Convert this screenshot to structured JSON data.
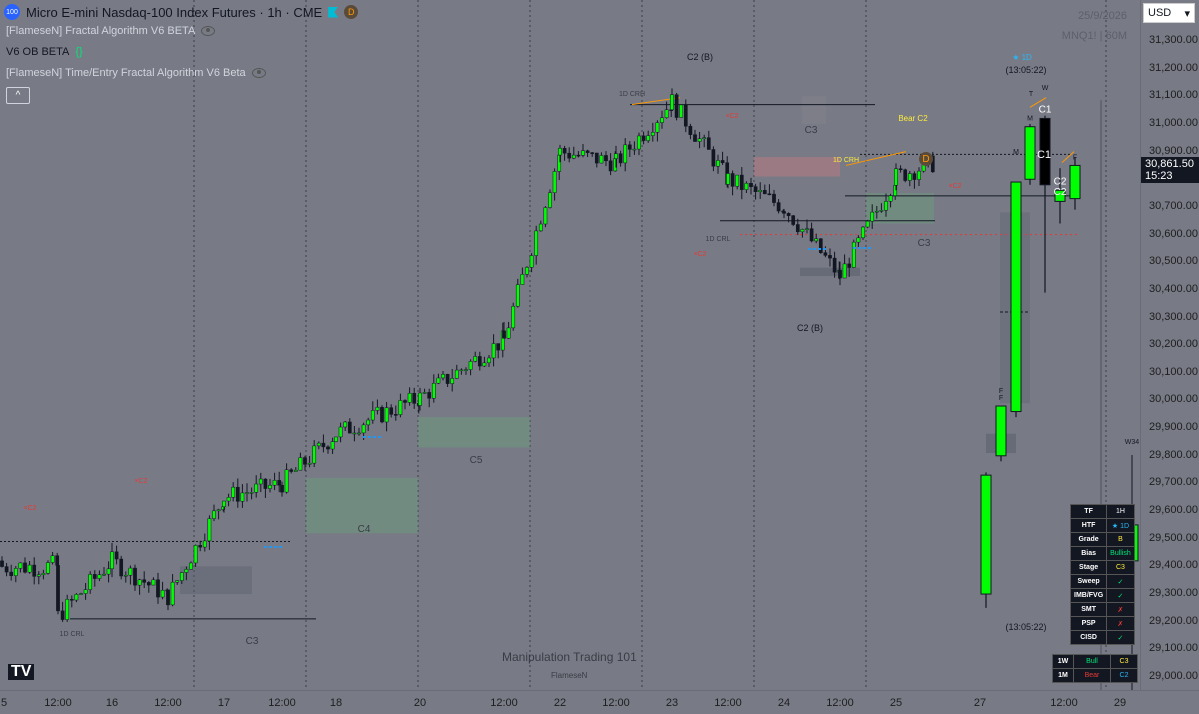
{
  "header": {
    "symbol_badge": "100",
    "title": "Micro E-mini Nasdaq-100 Index Futures · 1h · CME",
    "d_badge": "D",
    "indicators": [
      "[FlameseN] Fractal Algorithm V6 BETA",
      "V6 OB BETA",
      "[FlameseN] Time/Entry Fractal Algorithm V6 Beta"
    ],
    "braces": "{}",
    "collapse": "^"
  },
  "top_right": {
    "date": "25/9/2026",
    "ticker": "MNQ1! | 60M",
    "currency": "USD",
    "currency_caret": "▾"
  },
  "price_tag": {
    "price": "30,861.50",
    "countdown": "15:23"
  },
  "watermark": {
    "main": "Manipulation Trading 101",
    "sub": "FlameseN"
  },
  "tv_logo": "TV",
  "colors": {
    "background": "#787b86",
    "bull": "#00ff00",
    "bear": "#000000",
    "orange": "#ff9800",
    "yellow": "#ffeb3b",
    "red": "#e53935",
    "blue": "#2196f3"
  },
  "stats_table": {
    "rows": [
      {
        "k": "TF",
        "v": "1H",
        "c": "#ffffff"
      },
      {
        "k": "HTF",
        "v": "★ 1D",
        "c": "#29b6f6"
      },
      {
        "k": "Grade",
        "v": "B",
        "c": "#ffeb3b"
      },
      {
        "k": "Bias",
        "v": "Bullish",
        "c": "#00e676"
      },
      {
        "k": "Stage",
        "v": "C3",
        "c": "#ffeb3b"
      },
      {
        "k": "Sweep",
        "v": "✓",
        "c": "#00e676"
      },
      {
        "k": "IMB/FVG",
        "v": "✓",
        "c": "#00e676"
      },
      {
        "k": "SMT",
        "v": "✗",
        "c": "#e53935"
      },
      {
        "k": "PSP",
        "v": "✗",
        "c": "#e53935"
      },
      {
        "k": "CISD",
        "v": "✓",
        "c": "#00e676"
      }
    ]
  },
  "tf_table": {
    "rows": [
      {
        "k": "1W",
        "v1": "Bull",
        "c1": "#00e676",
        "v2": "C3",
        "c2": "#ffeb3b"
      },
      {
        "k": "1M",
        "v1": "Bear",
        "c1": "#e53935",
        "v2": "C2",
        "c2": "#29b6f6"
      }
    ]
  },
  "chart_data": {
    "type": "candlestick",
    "y_ticks": [
      31300,
      31200,
      31100,
      31000,
      30900,
      30800,
      30700,
      30600,
      30500,
      30400,
      30300,
      30200,
      30100,
      30000,
      29900,
      29800,
      29700,
      29600,
      29500,
      29400,
      29300,
      29200,
      29100,
      29000
    ],
    "y_tick_labels": [
      "31,300.00",
      "31,200.00",
      "31,100.00",
      "31,000.00",
      "30,900.00",
      "30,800.00",
      "30,700.00",
      "30,600.00",
      "30,500.00",
      "30,400.00",
      "30,300.00",
      "30,200.00",
      "30,100.00",
      "30,000.00",
      "29,900.00",
      "29,800.00",
      "29,700.00",
      "29,600.00",
      "29,500.00",
      "29,400.00",
      "29,300.00",
      "29,200.00",
      "29,100.00",
      "29,000.00"
    ],
    "ylim": [
      28960,
      31350
    ],
    "x_labels": [
      "5",
      "12:00",
      "16",
      "12:00",
      "17",
      "12:00",
      "18",
      "20",
      "12:00",
      "22",
      "12:00",
      "23",
      "12:00",
      "24",
      "12:00",
      "25",
      "27",
      "12:00",
      "29"
    ],
    "last_price": 30861.5,
    "trend_points": [
      {
        "d": "16",
        "p": 29220
      },
      {
        "d": "16 12:00",
        "p": 29420
      },
      {
        "d": "17",
        "p": 29290
      },
      {
        "d": "17 12:00",
        "p": 29650
      },
      {
        "d": "18",
        "p": 29700
      },
      {
        "d": "18 12:00",
        "p": 29880
      },
      {
        "d": "20",
        "p": 30010
      },
      {
        "d": "20 12:00",
        "p": 30220
      },
      {
        "d": "22",
        "p": 30900
      },
      {
        "d": "22 12:00",
        "p": 30860
      },
      {
        "d": "23",
        "p": 31080
      },
      {
        "d": "23 12:00",
        "p": 30800
      },
      {
        "d": "24",
        "p": 30700
      },
      {
        "d": "24 12:00",
        "p": 30450
      },
      {
        "d": "25",
        "p": 30810
      },
      {
        "d": "27",
        "p": 30860
      }
    ],
    "htf_candles": [
      {
        "label": "",
        "o": 29300,
        "h": 29740,
        "l": 29250,
        "c": 29730,
        "color": "bull"
      },
      {
        "label": "F",
        "o": 29800,
        "h": 29980,
        "l": 29780,
        "c": 29980,
        "color": "bull"
      },
      {
        "label": "",
        "o": 29960,
        "h": 30790,
        "l": 29940,
        "c": 30790,
        "color": "bull"
      },
      {
        "label": "M",
        "o": 30800,
        "h": 31000,
        "l": 30780,
        "c": 30990,
        "color": "bull"
      },
      {
        "label": "C1",
        "o": 31020,
        "h": 31030,
        "l": 30390,
        "c": 30780,
        "color": "bear"
      },
      {
        "label": "C2",
        "o": 30720,
        "h": 30840,
        "l": 30640,
        "c": 30760,
        "color": "bull"
      },
      {
        "label": "F",
        "o": 30730,
        "h": 30880,
        "l": 30690,
        "c": 30850,
        "color": "bull"
      }
    ],
    "annotations": [
      "C2 (B)",
      "1D CRH",
      "1D CRL",
      "C3",
      "C4",
      "C5",
      "Bear C2",
      "C2 (B)",
      "(13:05:22)",
      "(13:05:22)",
      "T",
      "W",
      "M",
      "F",
      "C1",
      "C2",
      "W34",
      "★ 1D",
      "D"
    ]
  }
}
